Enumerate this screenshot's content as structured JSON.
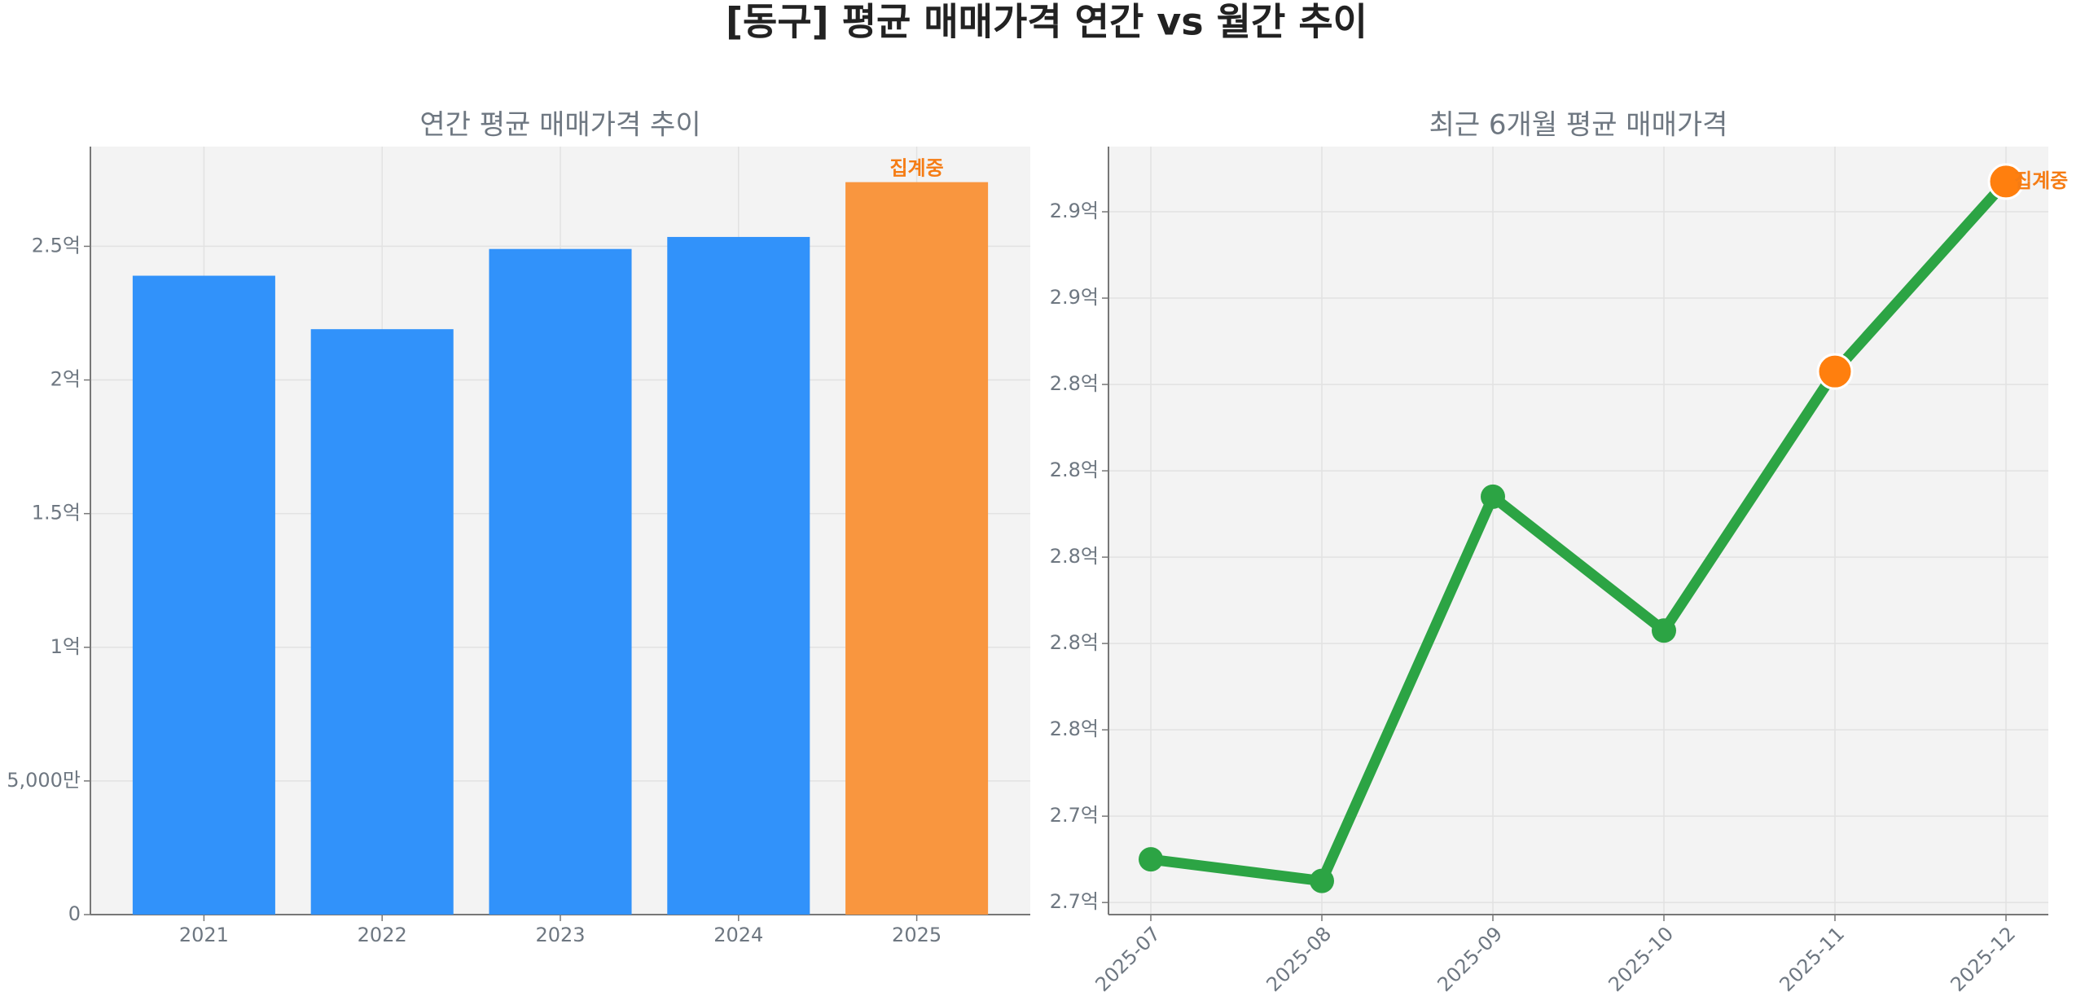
{
  "title": "[동구] 평균 매매가격 연간 vs 월간 추이",
  "chart_data": [
    {
      "type": "bar",
      "title": "연간 평균 매매가격 추이",
      "categories": [
        "2021",
        "2022",
        "2023",
        "2024",
        "2025"
      ],
      "values": [
        239000000,
        219000000,
        249000000,
        253500000,
        274000000
      ],
      "colors": [
        "#3192fa",
        "#3192fa",
        "#3192fa",
        "#3192fa",
        "#f9963f"
      ],
      "annotation": "집계중",
      "annotation_color": "#f57c14",
      "ylim": [
        0,
        287300000
      ],
      "yticks": [
        0,
        {
          "value": 50000000,
          "label": "5,000만"
        },
        {
          "value": 100000000,
          "label": "1억"
        },
        {
          "value": 150000000,
          "label": "1.5억"
        },
        {
          "value": 200000000,
          "label": "2억"
        },
        {
          "value": 250000000,
          "label": "2.5억"
        }
      ],
      "grid": true
    },
    {
      "type": "line",
      "title": "최근 6개월 평균 매매가격",
      "categories": [
        "2025-07",
        "2025-08",
        "2025-09",
        "2025-10",
        "2025-11",
        "2025-12"
      ],
      "series": [
        {
          "name": "평균 매매가격",
          "color": "#2ca444",
          "values": [
            272000000,
            271500000,
            280400000,
            277300000,
            283300000,
            287700000
          ],
          "point_colors": [
            "#2ca444",
            "#2ca444",
            "#2ca444",
            "#2ca444",
            "#ff7f0e",
            "#ff7f0e"
          ]
        }
      ],
      "annotation": "집계중",
      "annotation_color": "#f57c14",
      "ylim": [
        270720000,
        288510000
      ],
      "yticks": [
        {
          "value": 271000000,
          "label": "2.7억"
        },
        {
          "value": 273000000,
          "label": "2.7억"
        },
        {
          "value": 275000000,
          "label": "2.8억"
        },
        {
          "value": 277000000,
          "label": "2.8억"
        },
        {
          "value": 279000000,
          "label": "2.8억"
        },
        {
          "value": 281000000,
          "label": "2.8억"
        },
        {
          "value": 283000000,
          "label": "2.8억"
        },
        {
          "value": 285000000,
          "label": "2.9억"
        },
        {
          "value": 287000000,
          "label": "2.9억"
        }
      ],
      "grid": true
    }
  ]
}
